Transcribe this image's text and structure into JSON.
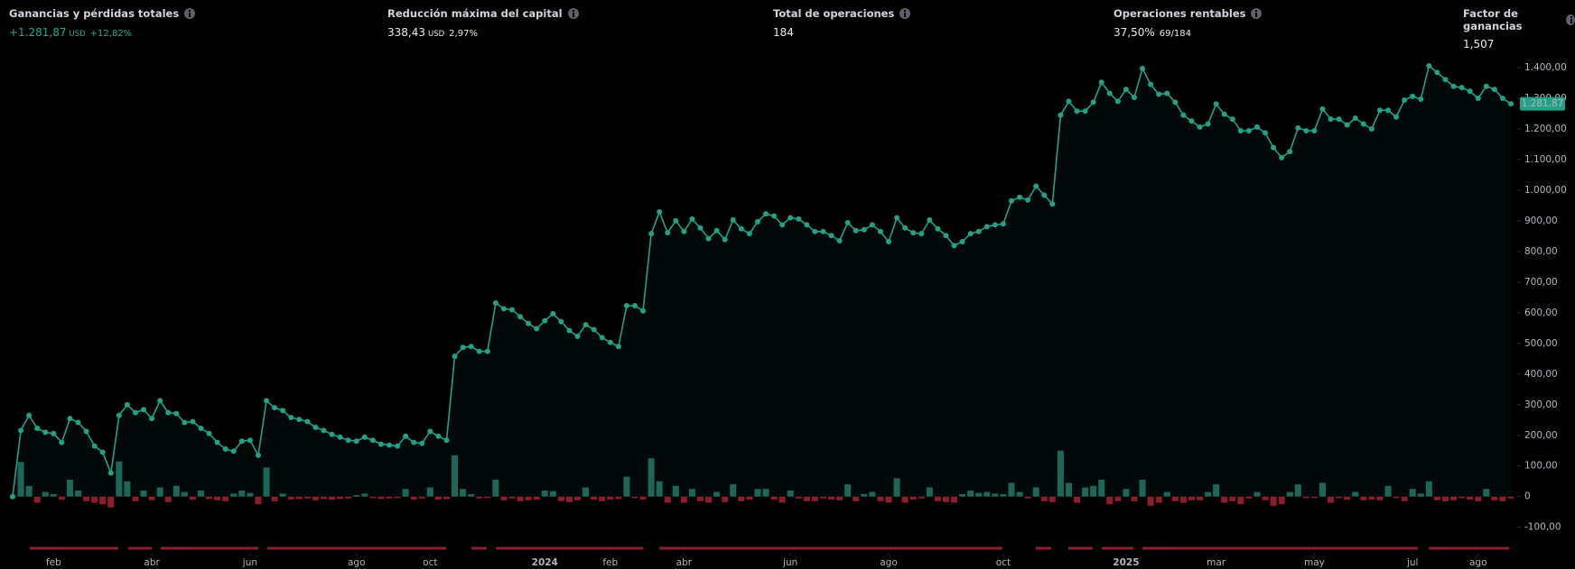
{
  "stats": [
    {
      "label": "Ganancias y pérdidas totales",
      "value": "+1.281,87",
      "unit": "USD",
      "extra": "+12,82%",
      "color": "#22ab94"
    },
    {
      "label": "Reducción máxima del capital",
      "value": "338,43",
      "unit": "USD",
      "extra": "2,97%"
    },
    {
      "label": "Total de operaciones",
      "value": "184"
    },
    {
      "label": "Operaciones rentables",
      "value": "37,50%",
      "extra": "69/184"
    },
    {
      "label": "Factor de ganancias",
      "value": "1,507"
    }
  ],
  "chart_data": {
    "type": "line",
    "xlim": [
      0,
      183
    ],
    "ylim": [
      -145,
      1450
    ],
    "yticks": [
      {
        "value": -100,
        "label": "-100,00"
      },
      0,
      {
        "value": 100,
        "label": "100,00"
      },
      {
        "value": 200,
        "label": "200,00"
      },
      {
        "value": 300,
        "label": "300,00"
      },
      {
        "value": 400,
        "label": "400,00"
      },
      {
        "value": 500,
        "label": "500,00"
      },
      {
        "value": 600,
        "label": "600,00"
      },
      {
        "value": 700,
        "label": "700,00"
      },
      {
        "value": 800,
        "label": "800,00"
      },
      {
        "value": 900,
        "label": "900,00"
      },
      {
        "value": 1000,
        "label": "1.000,00"
      },
      {
        "value": 1100,
        "label": "1.100,00"
      },
      {
        "value": 1200,
        "label": "1.200,00"
      },
      {
        "value": 1300,
        "label": "1.300,00"
      },
      {
        "value": 1400,
        "label": "1.400,00"
      }
    ],
    "xticks": [
      {
        "value": 5,
        "label": "feb"
      },
      {
        "value": 17,
        "label": "abr"
      },
      {
        "value": 29,
        "label": "jun"
      },
      {
        "value": 42,
        "label": "ago"
      },
      {
        "value": 51,
        "label": "oct"
      },
      {
        "value": 65,
        "label": "2024"
      },
      {
        "value": 73,
        "label": "feb"
      },
      {
        "value": 82,
        "label": "abr"
      },
      {
        "value": 95,
        "label": "jun"
      },
      {
        "value": 107,
        "label": "ago"
      },
      {
        "value": 121,
        "label": "oct"
      },
      {
        "value": 136,
        "label": "2025"
      },
      {
        "value": 147,
        "label": "mar"
      },
      {
        "value": 159,
        "label": "may"
      },
      {
        "value": 171,
        "label": "jul"
      },
      {
        "value": 179,
        "label": "ago"
      }
    ],
    "series": [
      {
        "type": "line",
        "color": "#22a187",
        "last_value_label": "1.281,87",
        "values": [
          0,
          216,
          265,
          223,
          210,
          206,
          177,
          255,
          242,
          213,
          165,
          145,
          77,
          265,
          300,
          274,
          284,
          255,
          313,
          274,
          271,
          242,
          245,
          223,
          206,
          177,
          155,
          148,
          181,
          184,
          135,
          313,
          290,
          281,
          258,
          252,
          245,
          226,
          216,
          203,
          194,
          184,
          181,
          194,
          184,
          171,
          168,
          165,
          197,
          177,
          174,
          213,
          197,
          184,
          458,
          487,
          490,
          474,
          474,
          632,
          613,
          610,
          587,
          565,
          548,
          574,
          597,
          571,
          542,
          523,
          561,
          545,
          519,
          503,
          490,
          623,
          623,
          606,
          858,
          929,
          861,
          900,
          865,
          906,
          877,
          842,
          868,
          839,
          903,
          874,
          858,
          897,
          923,
          916,
          887,
          910,
          906,
          887,
          865,
          865,
          852,
          835,
          894,
          868,
          871,
          887,
          865,
          832,
          910,
          877,
          861,
          858,
          903,
          874,
          852,
          819,
          832,
          858,
          865,
          881,
          887,
          890,
          965,
          977,
          968,
          1013,
          984,
          955,
          1245,
          1290,
          1258,
          1258,
          1287,
          1352,
          1316,
          1290,
          1329,
          1303,
          1397,
          1345,
          1313,
          1316,
          1287,
          1245,
          1226,
          1206,
          1216,
          1281,
          1248,
          1232,
          1194,
          1194,
          1206,
          1187,
          1139,
          1106,
          1126,
          1203,
          1194,
          1194,
          1265,
          1232,
          1232,
          1213,
          1235,
          1216,
          1200,
          1261,
          1261,
          1239,
          1294,
          1306,
          1297,
          1406,
          1384,
          1361,
          1339,
          1335,
          1323,
          1300,
          1339,
          1329,
          1300,
          1281.87
        ]
      },
      {
        "type": "bar",
        "color": "#1d6455",
        "negative_color": "#8c1d2a",
        "values": [
          -5,
          113,
          35,
          -20,
          15,
          8,
          -10,
          55,
          20,
          -15,
          -20,
          -25,
          -35,
          115,
          50,
          -15,
          20,
          -12,
          30,
          -18,
          35,
          15,
          -10,
          20,
          -8,
          -12,
          -15,
          10,
          20,
          12,
          -25,
          95,
          -15,
          10,
          -10,
          -8,
          -6,
          -12,
          -8,
          -10,
          -8,
          -6,
          5,
          10,
          -5,
          -8,
          -6,
          -5,
          25,
          -10,
          -6,
          30,
          -10,
          -8,
          135,
          25,
          8,
          -6,
          -5,
          55,
          -12,
          -6,
          -15,
          -12,
          -10,
          20,
          18,
          -15,
          -18,
          -12,
          30,
          -10,
          -15,
          -10,
          -8,
          65,
          -5,
          -10,
          125,
          50,
          -20,
          35,
          -20,
          25,
          -15,
          -20,
          15,
          -18,
          40,
          -15,
          -10,
          25,
          25,
          -10,
          -20,
          20,
          -6,
          -15,
          -15,
          -6,
          -10,
          -12,
          40,
          -15,
          8,
          15,
          -15,
          -20,
          60,
          -20,
          -10,
          -6,
          30,
          -15,
          -18,
          -20,
          8,
          20,
          12,
          15,
          10,
          8,
          45,
          15,
          -6,
          30,
          -15,
          -18,
          150,
          45,
          -20,
          30,
          35,
          55,
          -25,
          -15,
          25,
          -15,
          55,
          -30,
          -20,
          15,
          -15,
          -20,
          -12,
          -12,
          15,
          40,
          -20,
          -15,
          -25,
          -6,
          15,
          -12,
          -30,
          -25,
          15,
          40,
          -5,
          -5,
          45,
          -20,
          -5,
          -10,
          15,
          -12,
          -10,
          -12,
          35,
          -5,
          -15,
          25,
          10,
          50,
          -12,
          -15,
          -12,
          -5,
          -10,
          -15,
          25,
          -12,
          -15,
          -6
        ]
      }
    ]
  }
}
